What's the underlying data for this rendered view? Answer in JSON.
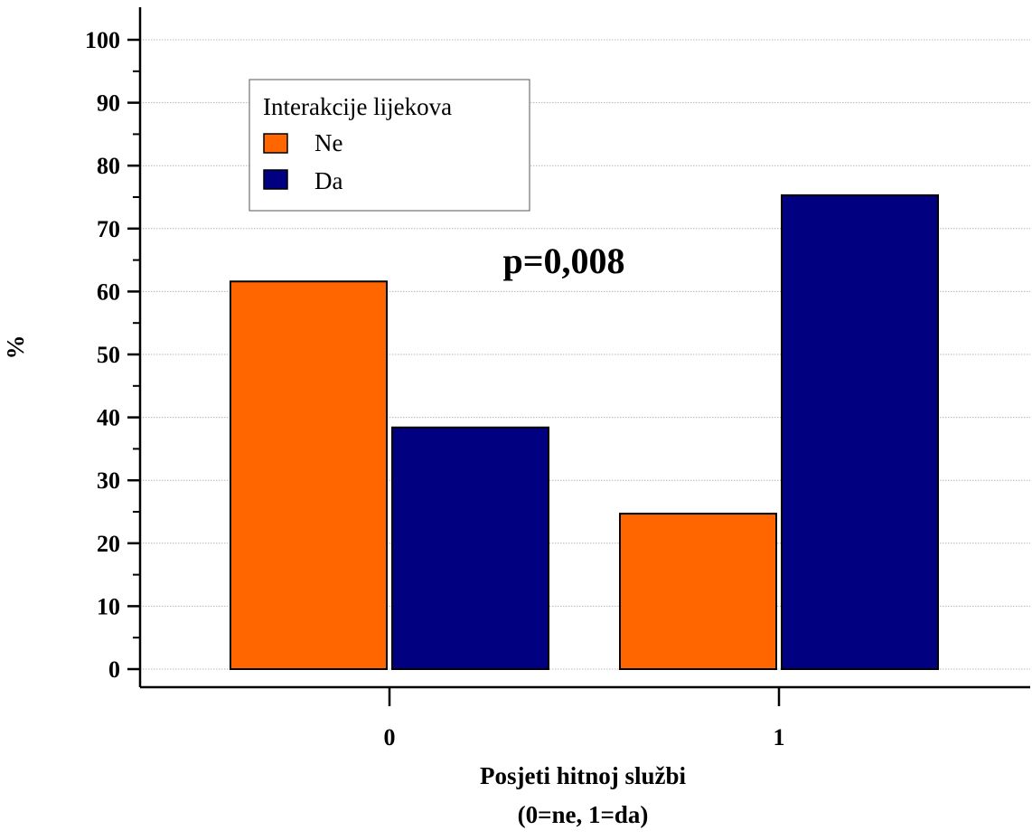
{
  "chart_data": {
    "type": "bar",
    "categories": [
      "0",
      "1"
    ],
    "series": [
      {
        "name": "Ne",
        "color": "#ff6600",
        "values": [
          61.6,
          24.7
        ]
      },
      {
        "name": "Da",
        "color": "#000080",
        "values": [
          38.4,
          75.3
        ]
      }
    ],
    "ylim": [
      0,
      100
    ],
    "yticks": [
      0,
      10,
      20,
      30,
      40,
      50,
      60,
      70,
      80,
      90,
      100
    ],
    "ylabel": "%",
    "xlabel": [
      "Posjeti hitnoj službi",
      "(0=ne, 1=da)"
    ],
    "legend": {
      "title": "Interakcije lijekova",
      "placement": "top-left"
    },
    "annotation": "p=0,008",
    "grid": true
  }
}
